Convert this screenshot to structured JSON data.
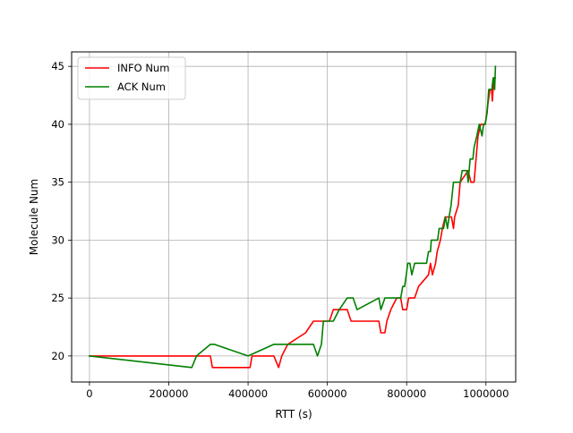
{
  "chart_data": {
    "type": "line",
    "title": "",
    "xlabel": "RTT (s)",
    "ylabel": "Molecule Num",
    "xlim": [
      -45000,
      1075000
    ],
    "ylim": [
      17.75,
      46.25
    ],
    "x_ticks": [
      0,
      200000,
      400000,
      600000,
      800000,
      1000000
    ],
    "x_tick_labels": [
      "0",
      "200000",
      "400000",
      "600000",
      "800000",
      "1000000"
    ],
    "y_ticks": [
      20,
      25,
      30,
      35,
      40,
      45
    ],
    "y_tick_labels": [
      "20",
      "25",
      "30",
      "35",
      "40",
      "45"
    ],
    "grid": true,
    "legend_position": "top-left",
    "series": [
      {
        "name": "INFO Num",
        "color": "#ff0000",
        "points": [
          [
            0,
            20
          ],
          [
            305000,
            20
          ],
          [
            310000,
            19
          ],
          [
            405000,
            19
          ],
          [
            410000,
            20
          ],
          [
            465000,
            20
          ],
          [
            477000,
            19
          ],
          [
            485000,
            20
          ],
          [
            500000,
            21
          ],
          [
            545000,
            22
          ],
          [
            565000,
            23
          ],
          [
            605000,
            23
          ],
          [
            615000,
            24
          ],
          [
            650000,
            24
          ],
          [
            660000,
            23
          ],
          [
            730000,
            23
          ],
          [
            735000,
            22
          ],
          [
            745000,
            22
          ],
          [
            750000,
            23
          ],
          [
            760000,
            24
          ],
          [
            775000,
            25
          ],
          [
            785000,
            25
          ],
          [
            790000,
            24
          ],
          [
            800000,
            24
          ],
          [
            805000,
            25
          ],
          [
            820000,
            25
          ],
          [
            830000,
            26
          ],
          [
            855000,
            27
          ],
          [
            860000,
            28
          ],
          [
            865000,
            27
          ],
          [
            873000,
            28
          ],
          [
            877000,
            29
          ],
          [
            885000,
            30
          ],
          [
            890000,
            31
          ],
          [
            897000,
            32
          ],
          [
            913000,
            32
          ],
          [
            918000,
            31
          ],
          [
            921000,
            32
          ],
          [
            930000,
            33
          ],
          [
            935000,
            35
          ],
          [
            955000,
            36
          ],
          [
            962000,
            35
          ],
          [
            970000,
            35
          ],
          [
            975000,
            37
          ],
          [
            980000,
            39
          ],
          [
            987000,
            40
          ],
          [
            998000,
            40
          ],
          [
            1002000,
            41
          ],
          [
            1006000,
            42
          ],
          [
            1010000,
            43
          ],
          [
            1014000,
            43
          ],
          [
            1016000,
            42
          ],
          [
            1020000,
            44
          ],
          [
            1023000,
            44
          ]
        ]
      },
      {
        "name": "ACK Num",
        "color": "#008000",
        "points": [
          [
            0,
            20
          ],
          [
            258000,
            19
          ],
          [
            270000,
            20
          ],
          [
            305000,
            21
          ],
          [
            315000,
            21
          ],
          [
            400000,
            20
          ],
          [
            465000,
            21
          ],
          [
            565000,
            21
          ],
          [
            575000,
            20
          ],
          [
            585000,
            21
          ],
          [
            590000,
            23
          ],
          [
            615000,
            23
          ],
          [
            630000,
            24
          ],
          [
            650000,
            25
          ],
          [
            665000,
            25
          ],
          [
            675000,
            24
          ],
          [
            730000,
            25
          ],
          [
            735000,
            24
          ],
          [
            745000,
            25
          ],
          [
            785000,
            25
          ],
          [
            790000,
            26
          ],
          [
            795000,
            26
          ],
          [
            803000,
            28
          ],
          [
            808000,
            28
          ],
          [
            813000,
            27
          ],
          [
            820000,
            28
          ],
          [
            850000,
            28
          ],
          [
            855000,
            29
          ],
          [
            860000,
            29
          ],
          [
            862000,
            30
          ],
          [
            878000,
            30
          ],
          [
            882000,
            31
          ],
          [
            893000,
            31
          ],
          [
            898000,
            32
          ],
          [
            903000,
            31
          ],
          [
            907000,
            32
          ],
          [
            912000,
            33
          ],
          [
            918000,
            35
          ],
          [
            935000,
            35
          ],
          [
            940000,
            36
          ],
          [
            952000,
            36
          ],
          [
            955000,
            35
          ],
          [
            960000,
            37
          ],
          [
            967000,
            37
          ],
          [
            970000,
            38
          ],
          [
            977000,
            39
          ],
          [
            983000,
            40
          ],
          [
            990000,
            39
          ],
          [
            994000,
            40
          ],
          [
            998000,
            40
          ],
          [
            1003000,
            41
          ],
          [
            1007000,
            43
          ],
          [
            1015000,
            43
          ],
          [
            1018000,
            44
          ],
          [
            1020000,
            44
          ],
          [
            1022000,
            43
          ],
          [
            1024000,
            45
          ]
        ]
      }
    ]
  }
}
